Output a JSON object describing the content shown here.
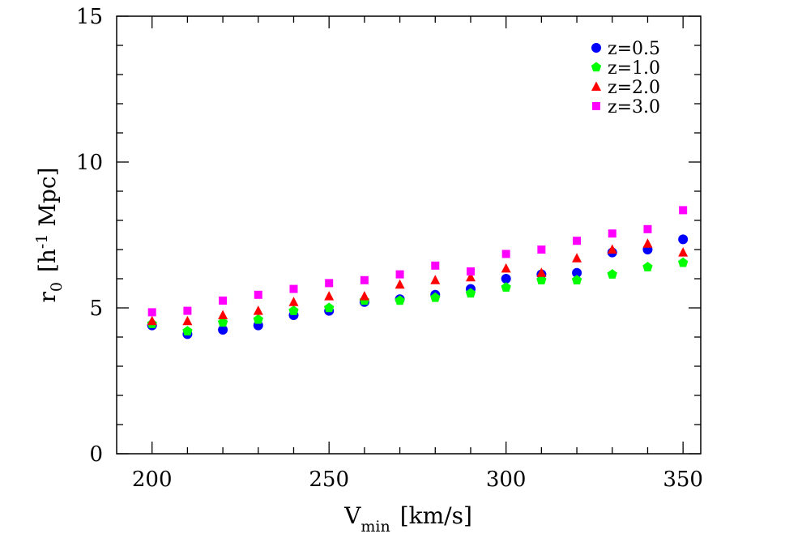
{
  "chart_data": {
    "type": "scatter",
    "xlabel_main": "V",
    "xlabel_sub": "min",
    "xlabel_unit": "[km/s]",
    "ylabel_main": "r",
    "ylabel_sub": "0",
    "ylabel_unit_pre": "[h",
    "ylabel_sup": "-1",
    "ylabel_unit_post": " Mpc]",
    "xlim": [
      190,
      355
    ],
    "ylim": [
      0,
      15
    ],
    "x_ticks": [
      200,
      250,
      300,
      350
    ],
    "x_tick_labels": [
      "200",
      "250",
      "300",
      "350"
    ],
    "y_ticks": [
      0,
      5,
      10,
      15
    ],
    "y_tick_labels": [
      "0",
      "5",
      "10",
      "15"
    ],
    "legend_position": "top-right",
    "x": [
      200,
      210,
      220,
      230,
      240,
      250,
      260,
      270,
      280,
      290,
      300,
      310,
      320,
      330,
      340,
      350
    ],
    "series": [
      {
        "name": "z=0.5",
        "color": "#0000ff",
        "marker": "circle",
        "values": [
          4.4,
          4.1,
          4.25,
          4.4,
          4.75,
          4.9,
          5.2,
          5.3,
          5.45,
          5.65,
          6.0,
          6.15,
          6.2,
          6.9,
          7.0,
          7.35
        ]
      },
      {
        "name": "z=1.0",
        "color": "#00ff00",
        "marker": "pentagon",
        "values": [
          4.45,
          4.2,
          4.5,
          4.6,
          4.9,
          5.0,
          5.25,
          5.25,
          5.35,
          5.5,
          5.7,
          5.95,
          5.95,
          6.15,
          6.4,
          6.55
        ]
      },
      {
        "name": "z=2.0",
        "color": "#ff0000",
        "marker": "triangle",
        "values": [
          4.55,
          4.55,
          4.75,
          4.9,
          5.2,
          5.4,
          5.4,
          5.8,
          5.95,
          6.05,
          6.35,
          6.2,
          6.7,
          7.0,
          7.2,
          6.9
        ]
      },
      {
        "name": "z=3.0",
        "color": "#ff00ff",
        "marker": "square",
        "values": [
          4.85,
          4.9,
          5.25,
          5.45,
          5.65,
          5.85,
          5.95,
          6.15,
          6.45,
          6.25,
          6.85,
          7.0,
          7.3,
          7.55,
          7.7,
          8.35
        ]
      }
    ]
  }
}
